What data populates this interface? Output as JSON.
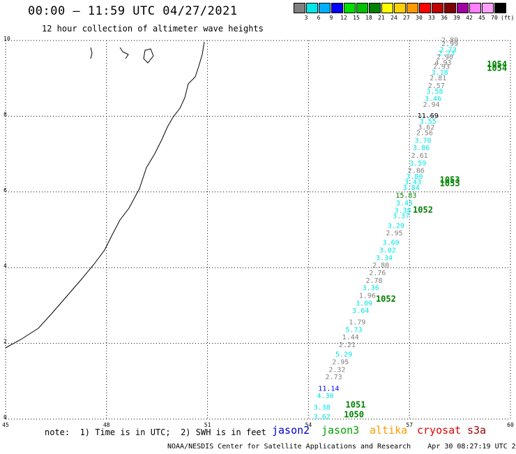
{
  "header": {
    "title": "00:00 – 11:59 UTC 04/27/2021",
    "subtitle": "12 hour collection of altimeter wave heights"
  },
  "colorbar": {
    "colors": [
      "#808080",
      "#00e5e5",
      "#00b0ff",
      "#0000ff",
      "#00e000",
      "#00c000",
      "#008000",
      "#ffff00",
      "#ffd000",
      "#ff9900",
      "#ff0000",
      "#c00000",
      "#800000",
      "#a000a0",
      "#ff80ff",
      "#ffa0ff",
      "#000000"
    ],
    "labels": [
      "3",
      "6",
      "9",
      "12",
      "15",
      "18",
      "21",
      "24",
      "27",
      "30",
      "33",
      "36",
      "39",
      "42",
      "45",
      "70",
      "(ft)"
    ]
  },
  "axes": {
    "x_ticks": [
      "45",
      "48",
      "51",
      "54",
      "57",
      "60"
    ],
    "y_ticks": [
      "0",
      "2",
      "4",
      "6",
      "8",
      "10"
    ]
  },
  "chart_data": {
    "type": "scatter",
    "title": "12 hour collection of altimeter wave heights",
    "xlabel": "",
    "ylabel": "",
    "xlim": [
      45,
      60
    ],
    "ylim": [
      0,
      10
    ],
    "grid": true,
    "points": [
      {
        "x": 58.2,
        "y": 9.95,
        "label": "2.89",
        "color": "#808080"
      },
      {
        "x": 58.2,
        "y": 9.85,
        "label": "2.99",
        "color": "#808080"
      },
      {
        "x": 58.15,
        "y": 9.7,
        "label": "2.73",
        "color": "#00e5e5"
      },
      {
        "x": 58.1,
        "y": 9.6,
        "label": "2.73",
        "color": "#00e5e5"
      },
      {
        "x": 58.05,
        "y": 9.5,
        "label": "2.90",
        "color": "#808080"
      },
      {
        "x": 58.0,
        "y": 9.35,
        "label": "4.93",
        "color": "#808080"
      },
      {
        "x": 57.95,
        "y": 9.25,
        "label": "2.93",
        "color": "#808080"
      },
      {
        "x": 57.9,
        "y": 9.1,
        "label": "3.18",
        "color": "#00e5e5"
      },
      {
        "x": 57.85,
        "y": 8.95,
        "label": "2.81",
        "color": "#808080"
      },
      {
        "x": 57.8,
        "y": 8.75,
        "label": "2.57",
        "color": "#808080"
      },
      {
        "x": 57.75,
        "y": 8.6,
        "label": "3.58",
        "color": "#00e5e5"
      },
      {
        "x": 57.7,
        "y": 8.4,
        "label": "3.46",
        "color": "#00e5e5"
      },
      {
        "x": 57.65,
        "y": 8.25,
        "label": "2.94",
        "color": "#808080"
      },
      {
        "x": 57.55,
        "y": 7.95,
        "label": "11.69",
        "color": "#000000"
      },
      {
        "x": 57.55,
        "y": 7.8,
        "label": "3.55",
        "color": "#00e5e5"
      },
      {
        "x": 57.5,
        "y": 7.65,
        "label": "3.62",
        "color": "#808080"
      },
      {
        "x": 57.45,
        "y": 7.5,
        "label": "2.56",
        "color": "#808080"
      },
      {
        "x": 57.4,
        "y": 7.3,
        "label": "3.70",
        "color": "#00e5e5"
      },
      {
        "x": 57.35,
        "y": 7.1,
        "label": "3.86",
        "color": "#00e5e5"
      },
      {
        "x": 57.3,
        "y": 6.9,
        "label": "2.61",
        "color": "#808080"
      },
      {
        "x": 57.25,
        "y": 6.7,
        "label": "3.59",
        "color": "#00e5e5"
      },
      {
        "x": 57.2,
        "y": 6.5,
        "label": "2.86",
        "color": "#808080"
      },
      {
        "x": 57.15,
        "y": 6.35,
        "label": "3.80",
        "color": "#00e5e5"
      },
      {
        "x": 57.1,
        "y": 6.2,
        "label": "3.43",
        "color": "#00e5e5"
      },
      {
        "x": 57.05,
        "y": 6.05,
        "label": "3.84",
        "color": "#00e5e5"
      },
      {
        "x": 56.9,
        "y": 5.85,
        "label": "15.83",
        "color": "#008000"
      },
      {
        "x": 56.85,
        "y": 5.65,
        "label": "3.45",
        "color": "#00e5e5"
      },
      {
        "x": 56.8,
        "y": 5.45,
        "label": "3.38",
        "color": "#00e5e5"
      },
      {
        "x": 56.75,
        "y": 5.3,
        "label": "3.37",
        "color": "#00e5e5"
      },
      {
        "x": 56.6,
        "y": 5.05,
        "label": "3.29",
        "color": "#00e5e5"
      },
      {
        "x": 56.55,
        "y": 4.85,
        "label": "2.95",
        "color": "#808080"
      },
      {
        "x": 56.45,
        "y": 4.6,
        "label": "3.69",
        "color": "#00e5e5"
      },
      {
        "x": 56.35,
        "y": 4.4,
        "label": "3.02",
        "color": "#00e5e5"
      },
      {
        "x": 56.25,
        "y": 4.2,
        "label": "3.34",
        "color": "#00e5e5"
      },
      {
        "x": 56.15,
        "y": 4.0,
        "label": "2.80",
        "color": "#808080"
      },
      {
        "x": 56.05,
        "y": 3.8,
        "label": "2.76",
        "color": "#808080"
      },
      {
        "x": 55.95,
        "y": 3.6,
        "label": "2.78",
        "color": "#808080"
      },
      {
        "x": 55.85,
        "y": 3.4,
        "label": "3.36",
        "color": "#00e5e5"
      },
      {
        "x": 55.75,
        "y": 3.2,
        "label": "1.96",
        "color": "#808080"
      },
      {
        "x": 55.65,
        "y": 3.0,
        "label": "3.09",
        "color": "#00e5e5"
      },
      {
        "x": 55.55,
        "y": 2.8,
        "label": "3.64",
        "color": "#00e5e5"
      },
      {
        "x": 55.45,
        "y": 2.5,
        "label": "1.79",
        "color": "#808080"
      },
      {
        "x": 55.35,
        "y": 2.3,
        "label": "5.73",
        "color": "#00e5e5"
      },
      {
        "x": 55.25,
        "y": 2.1,
        "label": "1.44",
        "color": "#808080"
      },
      {
        "x": 55.15,
        "y": 1.9,
        "label": "2.21",
        "color": "#808080"
      },
      {
        "x": 55.05,
        "y": 1.65,
        "label": "5.29",
        "color": "#00e5e5"
      },
      {
        "x": 54.95,
        "y": 1.45,
        "label": "2.95",
        "color": "#808080"
      },
      {
        "x": 54.85,
        "y": 1.25,
        "label": "2.32",
        "color": "#808080"
      },
      {
        "x": 54.75,
        "y": 1.05,
        "label": "2.73",
        "color": "#808080"
      },
      {
        "x": 54.6,
        "y": 0.75,
        "label": "11.14",
        "color": "#0000ff"
      },
      {
        "x": 54.5,
        "y": 0.55,
        "label": "4.30",
        "color": "#00e5e5"
      },
      {
        "x": 54.4,
        "y": 0.25,
        "label": "3.38",
        "color": "#00e5e5"
      },
      {
        "x": 54.4,
        "y": 0.0,
        "label": "3.62",
        "color": "#00e5e5"
      }
    ],
    "pressure_labels": [
      {
        "x": 59.6,
        "y": 9.3,
        "label": "1054"
      },
      {
        "x": 59.6,
        "y": 9.2,
        "label": "1054"
      },
      {
        "x": 58.2,
        "y": 6.25,
        "label": "1053"
      },
      {
        "x": 58.2,
        "y": 6.15,
        "label": "1053"
      },
      {
        "x": 57.4,
        "y": 5.45,
        "label": "1052"
      },
      {
        "x": 56.3,
        "y": 3.1,
        "label": "1052"
      },
      {
        "x": 55.4,
        "y": 0.3,
        "label": "1051"
      },
      {
        "x": 55.35,
        "y": 0.05,
        "label": "1050"
      }
    ]
  },
  "footer": {
    "note": "note:  1) Time is in UTC;  2) SWH is in feet",
    "legend": [
      {
        "label": "jason2",
        "color": "#0000d0"
      },
      {
        "label": "jason3",
        "color": "#00a000"
      },
      {
        "label": "altika",
        "color": "#ff9900"
      },
      {
        "label": "cryosat",
        "color": "#e00000"
      },
      {
        "label": "s3a",
        "color": "#a00000"
      }
    ],
    "credit": "NOAA/NESDIS Center for Satellite Applications and Research    Apr 30 08:27:19 UTC 2021"
  }
}
